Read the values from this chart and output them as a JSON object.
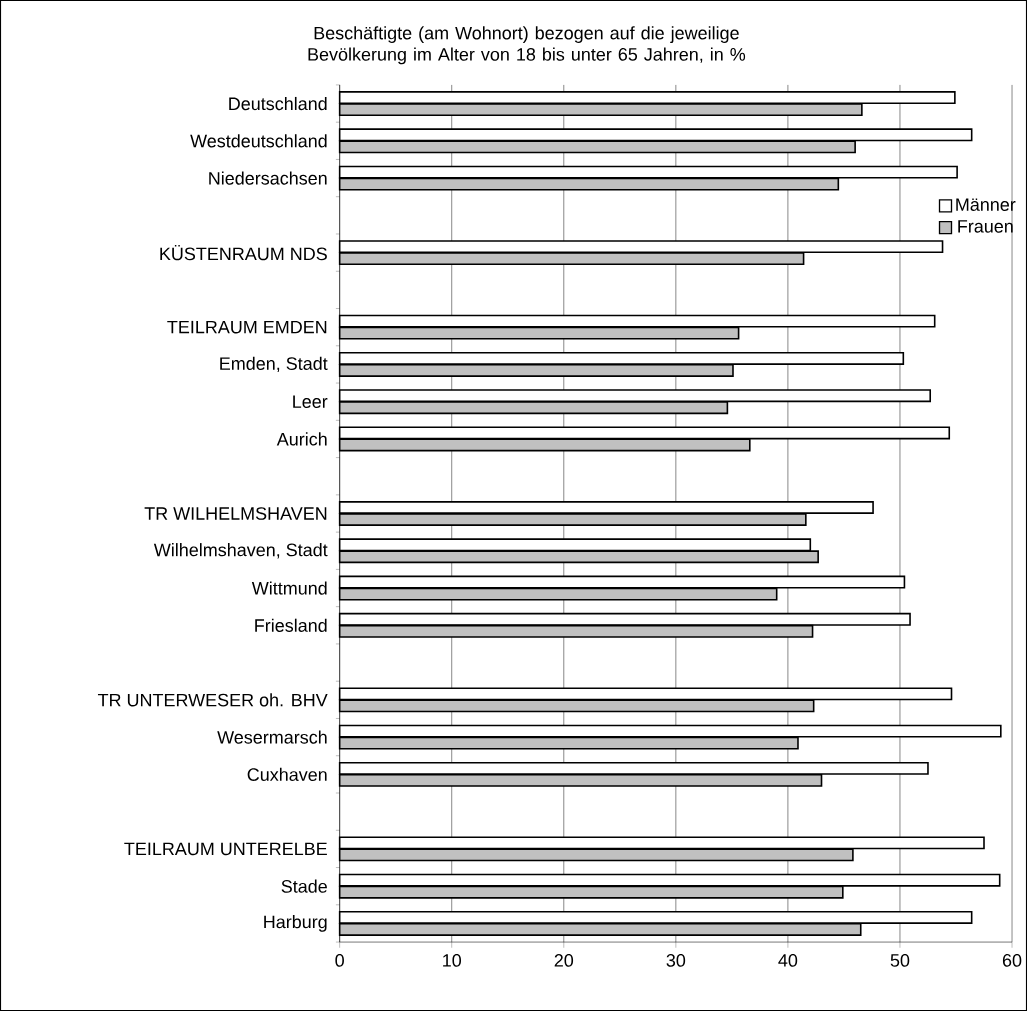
{
  "chart_data": {
    "type": "bar",
    "orientation": "horizontal",
    "title": "Beschäftigte (am Wohnort) bezogen auf die jeweilige Bevölkerung im Alter von 18 bis unter 65 Jahren, in %",
    "categories": [
      "Deutschland",
      "Westdeutschland",
      "Niedersachsen",
      null,
      "KÜSTENRAUM NDS",
      null,
      "TEILRAUM EMDEN",
      "Emden, Stadt",
      "Leer",
      "Aurich",
      null,
      "TR WILHELMSHAVEN",
      "Wilhelmshaven, Stadt",
      "Wittmund",
      "Friesland",
      null,
      "TR UNTERWESER oh. BHV",
      "Wesermarsch",
      "Cuxhaven",
      null,
      "TEILRAUM UNTERELBE",
      "Stade",
      "Harburg"
    ],
    "series": [
      {
        "name": "Männer",
        "color": "#ffffff",
        "values": [
          54.9,
          56.4,
          55.1,
          null,
          53.8,
          null,
          53.1,
          50.3,
          52.7,
          54.4,
          null,
          47.6,
          42.0,
          50.4,
          50.9,
          null,
          54.6,
          59.0,
          52.5,
          null,
          57.5,
          58.9,
          56.4
        ]
      },
      {
        "name": "Frauen",
        "color": "#c0c0c0",
        "values": [
          46.6,
          46.0,
          44.5,
          null,
          41.4,
          null,
          35.6,
          35.1,
          34.6,
          36.6,
          null,
          41.6,
          42.7,
          39.0,
          42.2,
          null,
          42.3,
          40.9,
          43.0,
          null,
          45.8,
          44.9,
          46.5
        ]
      }
    ],
    "xlim": [
      0,
      60
    ],
    "xticks": [
      0,
      10,
      20,
      30,
      40,
      50,
      60
    ],
    "grid": "x",
    "legend": "top right"
  }
}
